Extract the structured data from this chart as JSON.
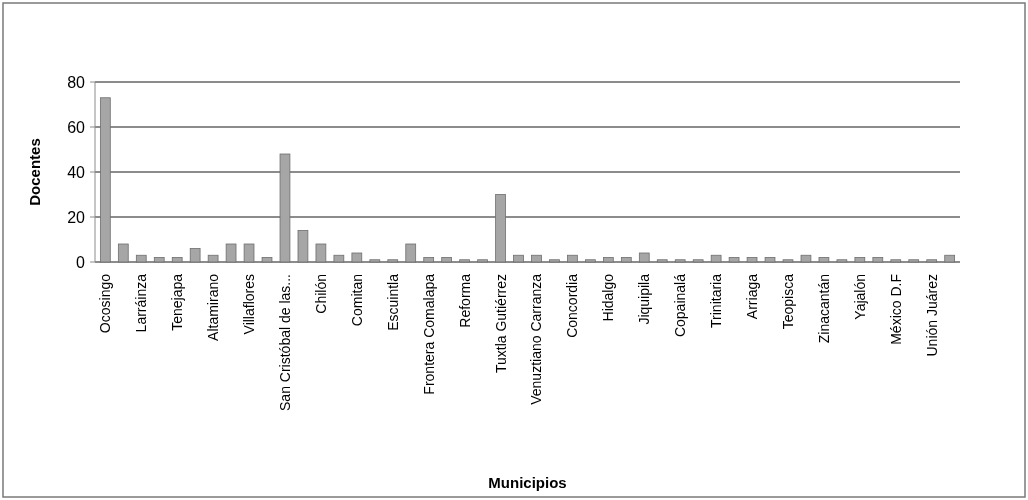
{
  "chart_data": {
    "type": "bar",
    "xlabel": "Municipios",
    "ylabel": "Docentes",
    "categories": [
      "Ocosingo",
      null,
      "Larráinza",
      null,
      "Tenejapa",
      null,
      "Altamirano",
      null,
      "Villaflores",
      null,
      "San Cristóbal de las...",
      null,
      "Chilón",
      null,
      "Comitan",
      null,
      "Escuintla",
      null,
      "Frontera Comalapa",
      null,
      "Reforma",
      null,
      "Tuxtla Gutiérrez",
      null,
      "Venuztiano Carranza",
      null,
      "Concordia",
      null,
      "Hidalgo",
      null,
      "Jiquipila",
      null,
      "Copainalá",
      null,
      "Trinitaria",
      null,
      "Arriaga",
      null,
      "Teopisca",
      null,
      "Zinacantán",
      null,
      "Yajalón",
      null,
      "México D.F",
      null,
      "Unión Juárez",
      null
    ],
    "values": [
      73,
      8,
      3,
      2,
      2,
      6,
      3,
      8,
      8,
      2,
      48,
      14,
      8,
      3,
      4,
      1,
      1,
      8,
      2,
      2,
      1,
      1,
      30,
      3,
      3,
      1,
      3,
      1,
      2,
      2,
      4,
      1,
      1,
      1,
      3,
      2,
      2,
      2,
      1,
      3,
      2,
      1,
      2,
      2,
      1,
      1,
      1,
      3
    ],
    "color": "#a6a6a6",
    "ylim": [
      0,
      80
    ],
    "yticks": [
      0,
      20,
      40,
      60,
      80
    ],
    "grid": "y"
  }
}
